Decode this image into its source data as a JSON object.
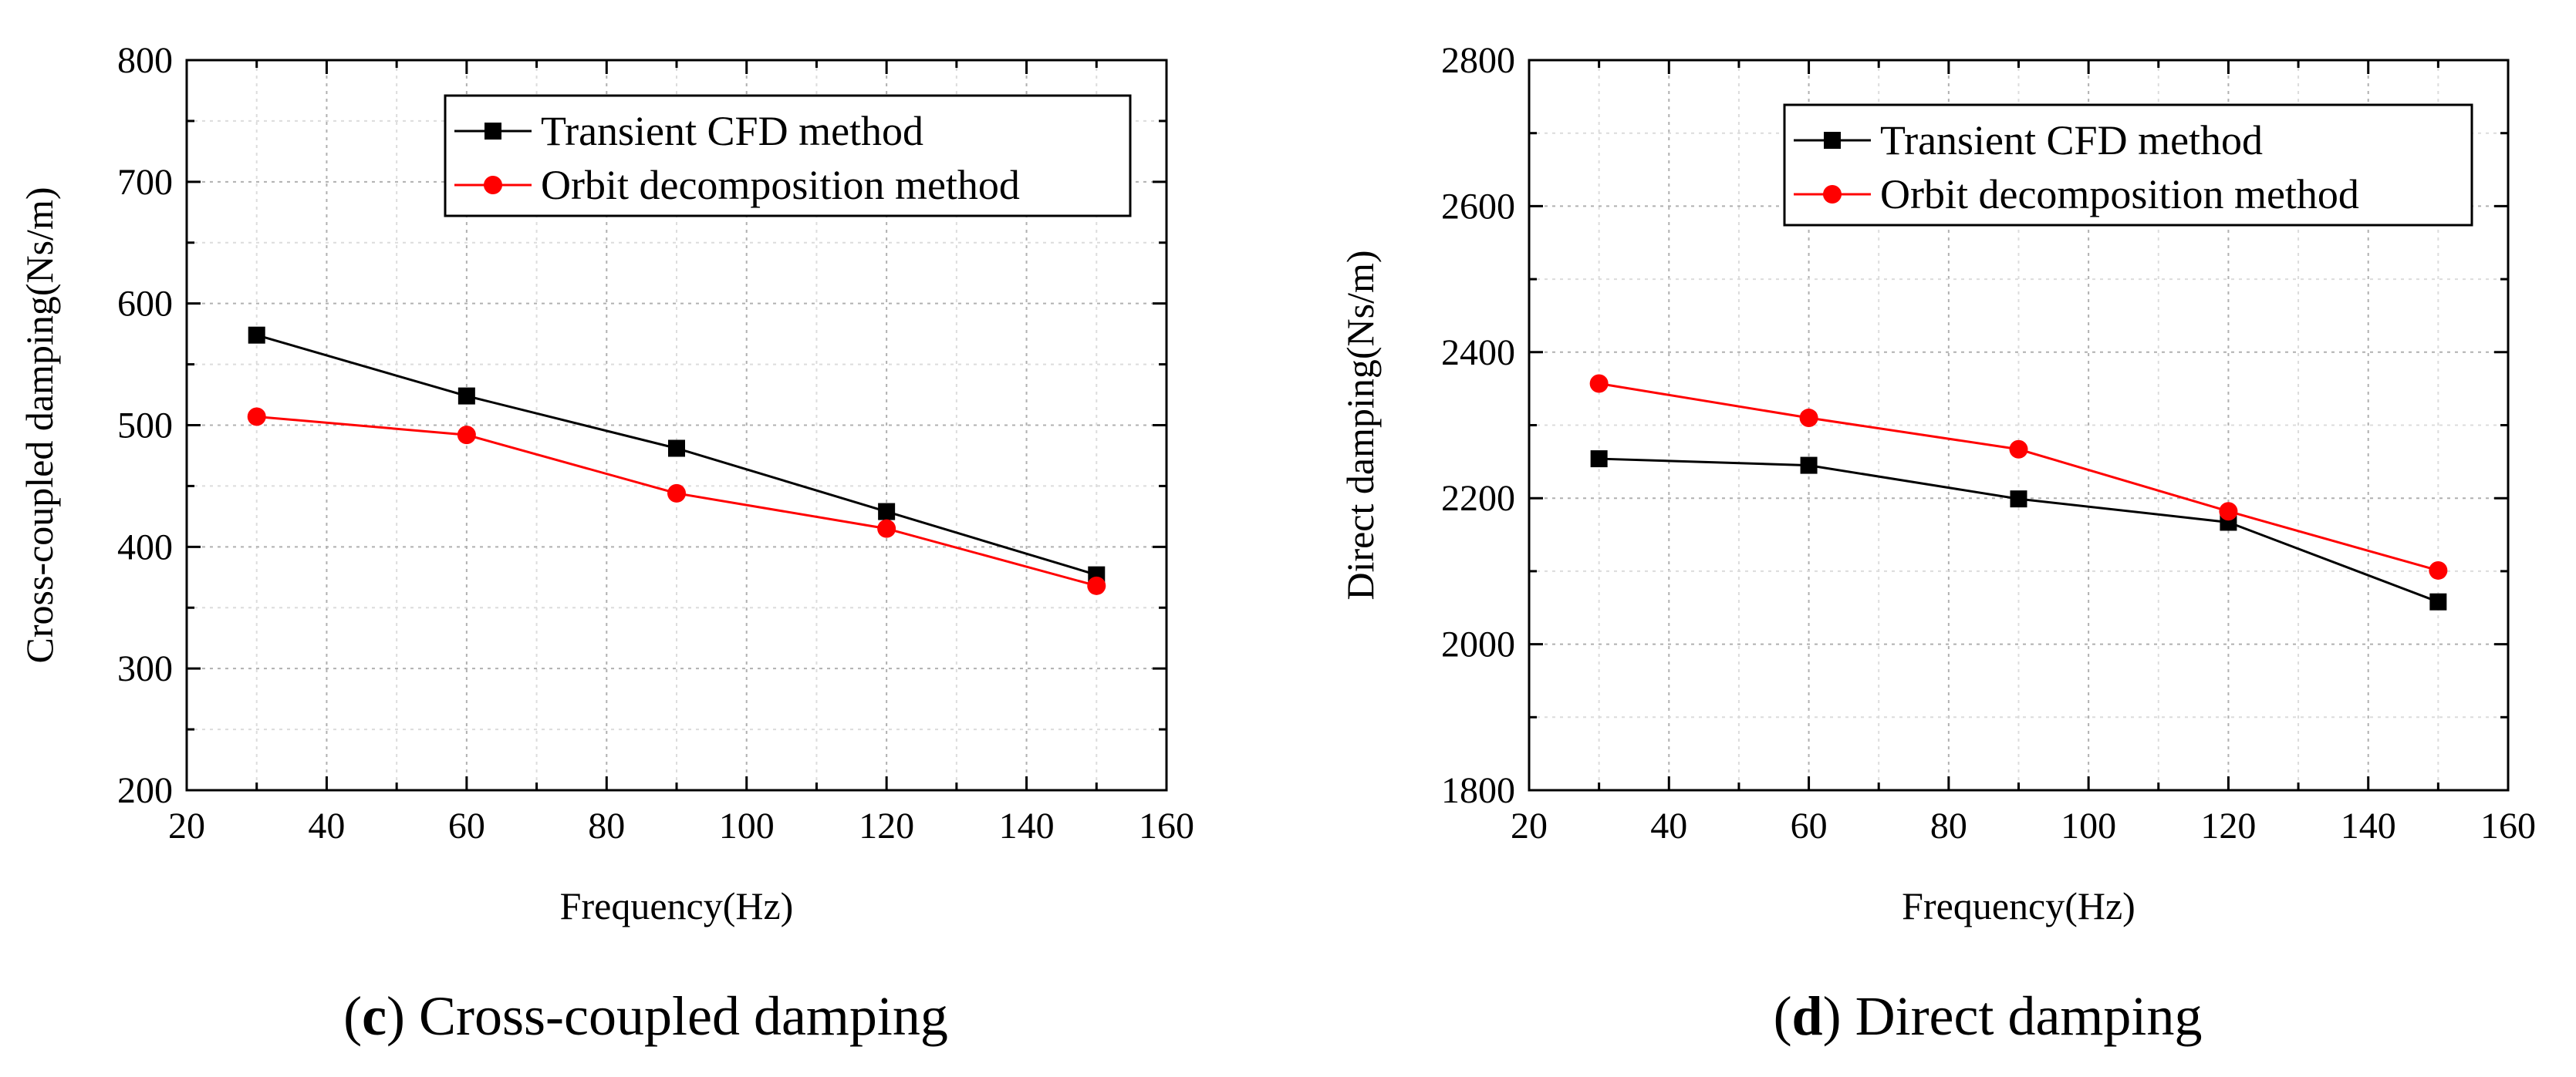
{
  "chart_data": [
    {
      "type": "line",
      "caption_letter": "c",
      "caption_text": "Cross-coupled damping",
      "xlabel": "Frequency(Hz)",
      "ylabel": "Cross-coupled damping(Ns/m)",
      "xlim": [
        20,
        160
      ],
      "ylim": [
        200,
        800
      ],
      "xticks": [
        20,
        40,
        60,
        80,
        100,
        120,
        140,
        160
      ],
      "yticks": [
        200,
        300,
        400,
        500,
        600,
        700,
        800
      ],
      "grid": true,
      "legend_position": "top-right",
      "series": [
        {
          "name": "Transient CFD method",
          "color": "#000000",
          "marker": "square",
          "x": [
            30,
            60,
            90,
            120,
            150
          ],
          "y": [
            574,
            524,
            481,
            429,
            377
          ]
        },
        {
          "name": "Orbit decomposition method",
          "color": "#ff0000",
          "marker": "circle",
          "x": [
            30,
            60,
            90,
            120,
            150
          ],
          "y": [
            507,
            492,
            444,
            415,
            368
          ]
        }
      ]
    },
    {
      "type": "line",
      "caption_letter": "d",
      "caption_text": "Direct damping",
      "xlabel": "Frequency(Hz)",
      "ylabel": "Direct damping(Ns/m)",
      "xlim": [
        20,
        160
      ],
      "ylim": [
        1800,
        2800
      ],
      "xticks": [
        20,
        40,
        60,
        80,
        100,
        120,
        140,
        160
      ],
      "yticks": [
        1800,
        2000,
        2200,
        2400,
        2600,
        2800
      ],
      "grid": true,
      "legend_position": "top-right",
      "series": [
        {
          "name": "Transient CFD method",
          "color": "#000000",
          "marker": "square",
          "x": [
            30,
            60,
            90,
            120,
            150
          ],
          "y": [
            2254,
            2245,
            2199,
            2167,
            2058
          ]
        },
        {
          "name": "Orbit decomposition method",
          "color": "#ff0000",
          "marker": "circle",
          "x": [
            30,
            60,
            90,
            120,
            150
          ],
          "y": [
            2357,
            2310,
            2267,
            2182,
            2101
          ]
        }
      ]
    }
  ]
}
